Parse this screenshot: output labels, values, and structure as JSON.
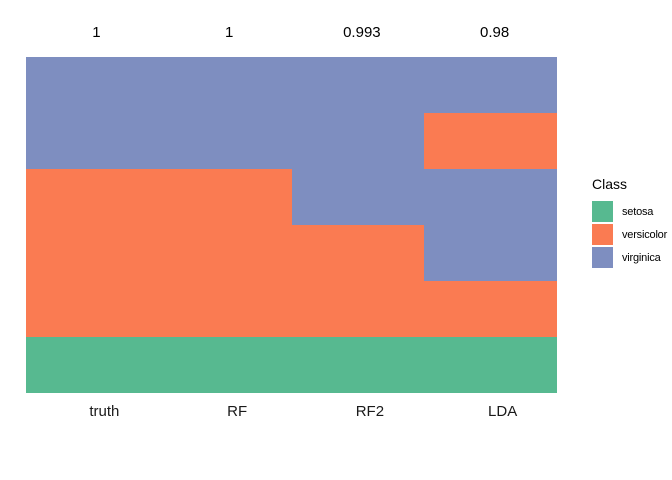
{
  "chart_data": {
    "type": "bar",
    "subtype": "stacked-class-membership-columns",
    "title": "",
    "grid": false,
    "axis_lines": false,
    "background": "#ffffff",
    "x_labels": [
      "truth",
      "RF",
      "RF2",
      "LDA"
    ],
    "columns": [
      {
        "label": "truth",
        "value_label": "1",
        "segments_top_to_bottom": [
          {
            "class": "virginica",
            "fraction": 0.3333
          },
          {
            "class": "versicolor",
            "fraction": 0.5
          },
          {
            "class": "setosa",
            "fraction": 0.1667
          }
        ]
      },
      {
        "label": "RF",
        "value_label": "1",
        "segments_top_to_bottom": [
          {
            "class": "virginica",
            "fraction": 0.3333
          },
          {
            "class": "versicolor",
            "fraction": 0.5
          },
          {
            "class": "setosa",
            "fraction": 0.1667
          }
        ]
      },
      {
        "label": "RF2",
        "value_label": "0.993",
        "segments_top_to_bottom": [
          {
            "class": "virginica",
            "fraction": 0.5
          },
          {
            "class": "versicolor",
            "fraction": 0.3333
          },
          {
            "class": "setosa",
            "fraction": 0.1667
          }
        ]
      },
      {
        "label": "LDA",
        "value_label": "0.98",
        "segments_top_to_bottom": [
          {
            "class": "virginica",
            "fraction": 0.1667
          },
          {
            "class": "versicolor",
            "fraction": 0.1667
          },
          {
            "class": "virginica",
            "fraction": 0.3333
          },
          {
            "class": "versicolor",
            "fraction": 0.1667
          },
          {
            "class": "setosa",
            "fraction": 0.1667
          }
        ]
      }
    ],
    "class_colors": {
      "setosa": "#57B990",
      "versicolor": "#FA7B52",
      "virginica": "#7E8EC0"
    },
    "legend": {
      "title": "Class",
      "position": "right",
      "items": [
        "setosa",
        "versicolor",
        "virginica"
      ]
    }
  }
}
